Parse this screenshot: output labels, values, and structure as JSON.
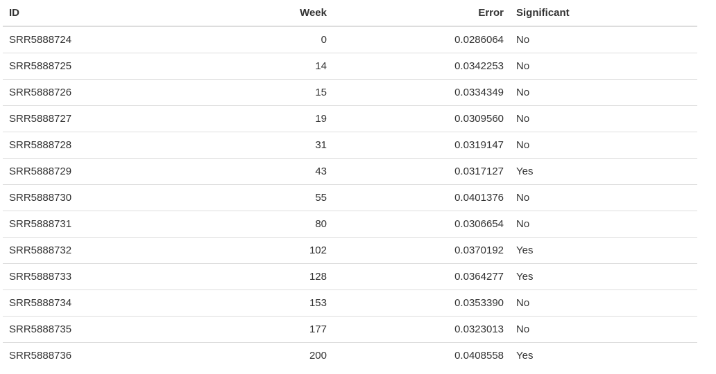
{
  "table": {
    "headers": {
      "id": "ID",
      "week": "Week",
      "error": "Error",
      "significant": "Significant"
    },
    "rows": [
      {
        "id": "SRR5888724",
        "week": "0",
        "error": "0.0286064",
        "significant": "No"
      },
      {
        "id": "SRR5888725",
        "week": "14",
        "error": "0.0342253",
        "significant": "No"
      },
      {
        "id": "SRR5888726",
        "week": "15",
        "error": "0.0334349",
        "significant": "No"
      },
      {
        "id": "SRR5888727",
        "week": "19",
        "error": "0.0309560",
        "significant": "No"
      },
      {
        "id": "SRR5888728",
        "week": "31",
        "error": "0.0319147",
        "significant": "No"
      },
      {
        "id": "SRR5888729",
        "week": "43",
        "error": "0.0317127",
        "significant": "Yes"
      },
      {
        "id": "SRR5888730",
        "week": "55",
        "error": "0.0401376",
        "significant": "No"
      },
      {
        "id": "SRR5888731",
        "week": "80",
        "error": "0.0306654",
        "significant": "No"
      },
      {
        "id": "SRR5888732",
        "week": "102",
        "error": "0.0370192",
        "significant": "Yes"
      },
      {
        "id": "SRR5888733",
        "week": "128",
        "error": "0.0364277",
        "significant": "Yes"
      },
      {
        "id": "SRR5888734",
        "week": "153",
        "error": "0.0353390",
        "significant": "No"
      },
      {
        "id": "SRR5888735",
        "week": "177",
        "error": "0.0323013",
        "significant": "No"
      },
      {
        "id": "SRR5888736",
        "week": "200",
        "error": "0.0408558",
        "significant": "Yes"
      }
    ]
  }
}
